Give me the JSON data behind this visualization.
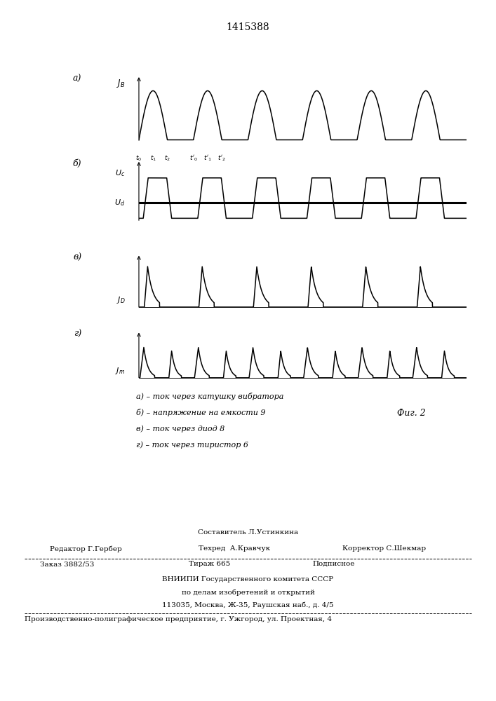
{
  "title": "1415388",
  "title_fontsize": 10,
  "background_color": "#ffffff",
  "line_color": "#000000",
  "legend_lines": [
    "а) – ток через катушку вибратора",
    "б) – напряжение на емкости 9",
    "в) – ток через диод 8",
    "г) – ток через тиристор 6"
  ],
  "fig2_label": "Фиг. 2",
  "panel_left_labels": [
    "а)",
    "б)",
    "в)",
    "г)"
  ],
  "panel_y_labels": [
    "$J_B$",
    "$U_c$",
    "$J_D$",
    "$J_m$"
  ],
  "Ud_label": "$U_d$",
  "time_labels": [
    "$t_0$",
    "$t_1$",
    "$t_2$",
    "$t'_0$",
    "$t'_1$",
    "$t'_2$"
  ]
}
